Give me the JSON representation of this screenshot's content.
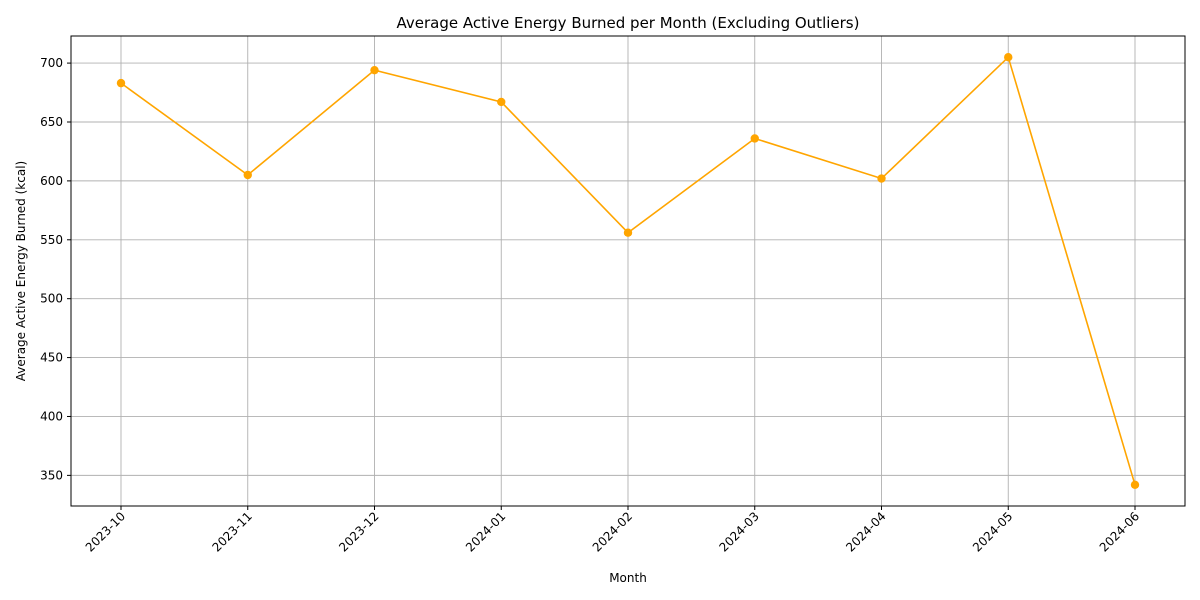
{
  "chart_data": {
    "type": "line",
    "title": "Average Active Energy Burned per Month (Excluding Outliers)",
    "xlabel": "Month",
    "ylabel": "Average Active Energy Burned (kcal)",
    "categories": [
      "2023-10",
      "2023-11",
      "2023-12",
      "2024-01",
      "2024-02",
      "2024-03",
      "2024-04",
      "2024-05",
      "2024-06"
    ],
    "values": [
      683,
      605,
      694,
      667,
      556,
      636,
      602,
      705,
      342
    ],
    "ylim": [
      324,
      723
    ],
    "yticks": [
      350,
      400,
      450,
      500,
      550,
      600,
      650,
      700
    ],
    "grid": true,
    "marker": "circle",
    "color": "#FFA500"
  }
}
